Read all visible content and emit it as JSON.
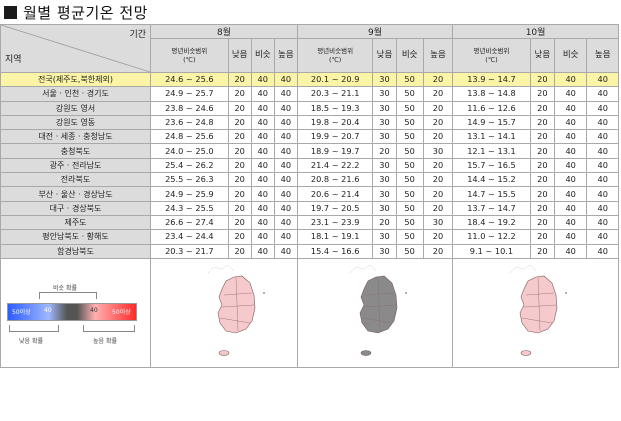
{
  "title": "월별 평균기온 전망",
  "header": {
    "corner_top": "기간",
    "corner_bottom": "지역",
    "months": [
      "8월",
      "9월",
      "10월"
    ],
    "sub_range_line1": "평년비슷범위",
    "sub_range_line2": "(℃)",
    "sub_low": "낮음",
    "sub_similar": "비슷",
    "sub_high": "높음"
  },
  "rows": [
    {
      "region": "전국(제주도,북한제외)",
      "m8": {
        "range": "24.6 ~ 25.6",
        "low": "20",
        "sim": "40",
        "high": "40"
      },
      "m9": {
        "range": "20.1 ~ 20.9",
        "low": "30",
        "sim": "50",
        "high": "20"
      },
      "m10": {
        "range": "13.9 ~ 14.7",
        "low": "20",
        "sim": "40",
        "high": "40"
      }
    },
    {
      "region": "서울 · 인천 · 경기도",
      "m8": {
        "range": "24.9 ~ 25.7",
        "low": "20",
        "sim": "40",
        "high": "40"
      },
      "m9": {
        "range": "20.3 ~ 21.1",
        "low": "30",
        "sim": "50",
        "high": "20"
      },
      "m10": {
        "range": "13.8 ~ 14.8",
        "low": "20",
        "sim": "40",
        "high": "40"
      }
    },
    {
      "region": "강원도 영서",
      "m8": {
        "range": "23.8 ~ 24.6",
        "low": "20",
        "sim": "40",
        "high": "40"
      },
      "m9": {
        "range": "18.5 ~ 19.3",
        "low": "30",
        "sim": "50",
        "high": "20"
      },
      "m10": {
        "range": "11.6 ~ 12.6",
        "low": "20",
        "sim": "40",
        "high": "40"
      }
    },
    {
      "region": "강원도 영동",
      "m8": {
        "range": "23.6 ~ 24.8",
        "low": "20",
        "sim": "40",
        "high": "40"
      },
      "m9": {
        "range": "19.8 ~ 20.4",
        "low": "30",
        "sim": "50",
        "high": "20"
      },
      "m10": {
        "range": "14.9 ~ 15.7",
        "low": "20",
        "sim": "40",
        "high": "40"
      }
    },
    {
      "region": "대전 · 세종 · 충청남도",
      "m8": {
        "range": "24.8 ~ 25.6",
        "low": "20",
        "sim": "40",
        "high": "40"
      },
      "m9": {
        "range": "19.9 ~ 20.7",
        "low": "30",
        "sim": "50",
        "high": "20"
      },
      "m10": {
        "range": "13.1 ~ 14.1",
        "low": "20",
        "sim": "40",
        "high": "40"
      }
    },
    {
      "region": "충청북도",
      "m8": {
        "range": "24.0 ~ 25.0",
        "low": "20",
        "sim": "40",
        "high": "40"
      },
      "m9": {
        "range": "18.9 ~ 19.7",
        "low": "20",
        "sim": "50",
        "high": "30"
      },
      "m10": {
        "range": "12.1 ~ 13.1",
        "low": "20",
        "sim": "40",
        "high": "40"
      }
    },
    {
      "region": "광주 · 전라남도",
      "m8": {
        "range": "25.4 ~ 26.2",
        "low": "20",
        "sim": "40",
        "high": "40"
      },
      "m9": {
        "range": "21.4 ~ 22.2",
        "low": "30",
        "sim": "50",
        "high": "20"
      },
      "m10": {
        "range": "15.7 ~ 16.5",
        "low": "20",
        "sim": "40",
        "high": "40"
      }
    },
    {
      "region": "전라북도",
      "m8": {
        "range": "25.5 ~ 26.3",
        "low": "20",
        "sim": "40",
        "high": "40"
      },
      "m9": {
        "range": "20.8 ~ 21.6",
        "low": "30",
        "sim": "50",
        "high": "20"
      },
      "m10": {
        "range": "14.4 ~ 15.2",
        "low": "20",
        "sim": "40",
        "high": "40"
      }
    },
    {
      "region": "부산 · 울산 · 경상남도",
      "m8": {
        "range": "24.9 ~ 25.9",
        "low": "20",
        "sim": "40",
        "high": "40"
      },
      "m9": {
        "range": "20.6 ~ 21.4",
        "low": "30",
        "sim": "50",
        "high": "20"
      },
      "m10": {
        "range": "14.7 ~ 15.5",
        "low": "20",
        "sim": "40",
        "high": "40"
      }
    },
    {
      "region": "대구 · 경상북도",
      "m8": {
        "range": "24.3 ~ 25.5",
        "low": "20",
        "sim": "40",
        "high": "40"
      },
      "m9": {
        "range": "19.7 ~ 20.5",
        "low": "30",
        "sim": "50",
        "high": "20"
      },
      "m10": {
        "range": "13.7 ~ 14.7",
        "low": "20",
        "sim": "40",
        "high": "40"
      }
    },
    {
      "region": "제주도",
      "m8": {
        "range": "26.6 ~ 27.4",
        "low": "20",
        "sim": "40",
        "high": "40"
      },
      "m9": {
        "range": "23.1 ~ 23.9",
        "low": "20",
        "sim": "50",
        "high": "30"
      },
      "m10": {
        "range": "18.4 ~ 19.2",
        "low": "20",
        "sim": "40",
        "high": "40"
      }
    },
    {
      "region": "평안남북도 · 황해도",
      "m8": {
        "range": "23.4 ~ 24.4",
        "low": "20",
        "sim": "40",
        "high": "40"
      },
      "m9": {
        "range": "18.1 ~ 19.1",
        "low": "30",
        "sim": "50",
        "high": "20"
      },
      "m10": {
        "range": "11.0 ~ 12.2",
        "low": "20",
        "sim": "40",
        "high": "40"
      }
    },
    {
      "region": "함경남북도",
      "m8": {
        "range": "20.3 ~ 21.7",
        "low": "20",
        "sim": "40",
        "high": "40"
      },
      "m9": {
        "range": "15.4 ~ 16.6",
        "low": "30",
        "sim": "50",
        "high": "20"
      },
      "m10": {
        "range": "9.1 ~ 10.1",
        "low": "20",
        "sim": "40",
        "high": "40"
      }
    }
  ],
  "legend": {
    "similar_label": "비슷 확률",
    "low_label": "낮음 확률",
    "high_label": "높음 확률",
    "bar_left": "50이상",
    "bar_mid_left": "40",
    "bar_mid_right": "40",
    "bar_right": "50이상"
  },
  "maps": {
    "m8_fill": "#f6c9cc",
    "m9_fill": "#8a8a8a",
    "m10_fill": "#f6c9cc",
    "highlight_row_color": "#fbf3a6",
    "header_color": "#dcdcdc"
  }
}
